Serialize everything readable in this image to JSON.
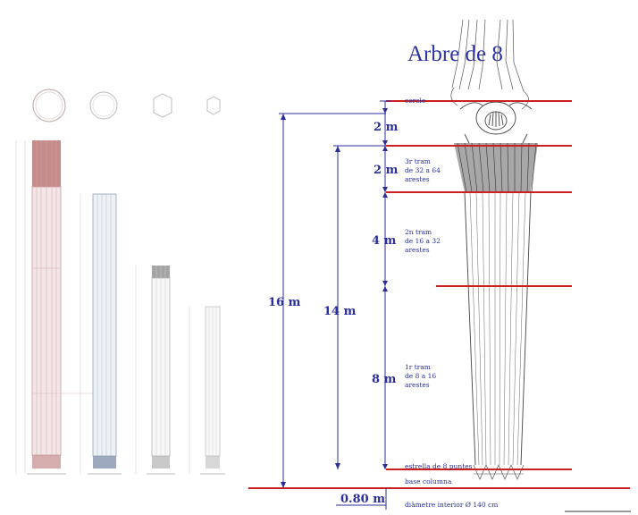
{
  "title": "Arbre de 8",
  "dimensions": {
    "total": "16 m",
    "shaft": "14 m",
    "segment_cercle": "2 m",
    "segment_3r": "2 m",
    "segment_2n": "4 m",
    "segment_1r": "8 m",
    "base_width": "0.80 m"
  },
  "annotations": {
    "cercle": "cercle",
    "tram3_line1": "3r tram",
    "tram3_line2": "de 32 a 64",
    "tram3_line3": "arestes",
    "tram2_line1": "2n tram",
    "tram2_line2": "de 16 a 32",
    "tram2_line3": "arestes",
    "tram1_line1": "1r tram",
    "tram1_line2": "de 8 a 16",
    "tram1_line3": "arestes",
    "estrella": "estrella de 8 puntes",
    "base": "base columna",
    "diametre": "diàmetre interior Ø 140 cm"
  },
  "colors": {
    "red_line": "#cc1f1f",
    "dimension_blue": "#2a2e9a",
    "elev1": "#a85a5a",
    "elev2": "#7d93ad",
    "elev3": "#8c8c8c",
    "elev4": "#a9a9a9"
  }
}
